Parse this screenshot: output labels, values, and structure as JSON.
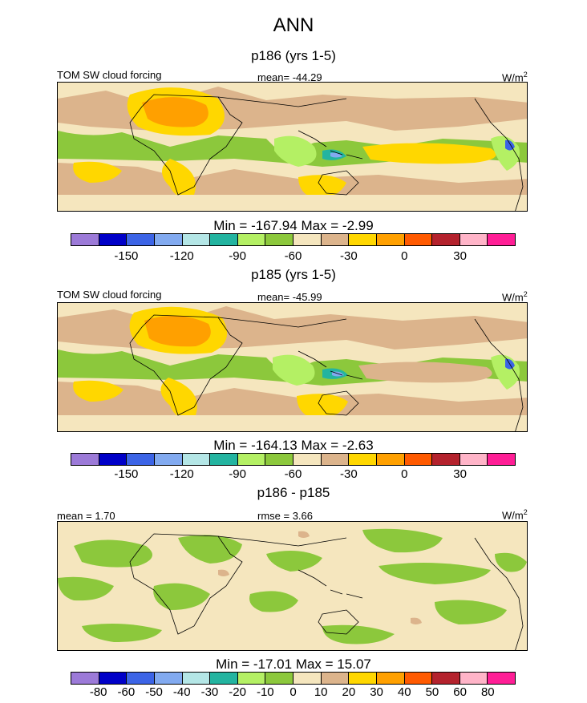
{
  "title": "ANN",
  "chart_data": [
    {
      "type": "heatmap",
      "title": "p186 (yrs 1-5)",
      "left_label": "TOM SW cloud forcing",
      "center_label": "mean= -44.29",
      "units": "W/m",
      "units_sup": "2",
      "min_max": "Min = -167.94 Max =  -2.99",
      "levels": [
        "-150",
        "-120",
        "-90",
        "-60",
        "-30",
        "0",
        "30"
      ],
      "colors": [
        "#9c7ad8",
        "#0000c8",
        "#3c64e6",
        "#82aaf0",
        "#b4e6e6",
        "#23b4a0",
        "#b4f064",
        "#8cc83c",
        "#f5e6be",
        "#dcb48c",
        "#ffd700",
        "#ffa000",
        "#ff5a00",
        "#b4222d",
        "#ffb4c8",
        "#ff1e96"
      ]
    },
    {
      "type": "heatmap",
      "title": "p185 (yrs 1-5)",
      "left_label": "TOM SW cloud forcing",
      "center_label": "mean= -45.99",
      "units": "W/m",
      "units_sup": "2",
      "min_max": "Min = -164.13 Max =  -2.63",
      "levels": [
        "-150",
        "-120",
        "-90",
        "-60",
        "-30",
        "0",
        "30"
      ],
      "colors": [
        "#9c7ad8",
        "#0000c8",
        "#3c64e6",
        "#82aaf0",
        "#b4e6e6",
        "#23b4a0",
        "#b4f064",
        "#8cc83c",
        "#f5e6be",
        "#dcb48c",
        "#ffd700",
        "#ffa000",
        "#ff5a00",
        "#b4222d",
        "#ffb4c8",
        "#ff1e96"
      ]
    },
    {
      "type": "heatmap",
      "title": "p186 - p185",
      "left_label": "mean =   1.70",
      "center_label": "rmse =   3.66",
      "units": "W/m",
      "units_sup": "2",
      "min_max": "Min = -17.01 Max =  15.07",
      "levels": [
        "-80",
        "-60",
        "-50",
        "-40",
        "-30",
        "-20",
        "-10",
        "0",
        "10",
        "20",
        "30",
        "40",
        "50",
        "60",
        "80"
      ],
      "colors": [
        "#9c7ad8",
        "#0000c8",
        "#3c64e6",
        "#82aaf0",
        "#b4e6e6",
        "#23b4a0",
        "#b4f064",
        "#8cc83c",
        "#f5e6be",
        "#dcb48c",
        "#ffd700",
        "#ffa000",
        "#ff5a00",
        "#b4222d",
        "#ffb4c8",
        "#ff1e96"
      ]
    }
  ]
}
